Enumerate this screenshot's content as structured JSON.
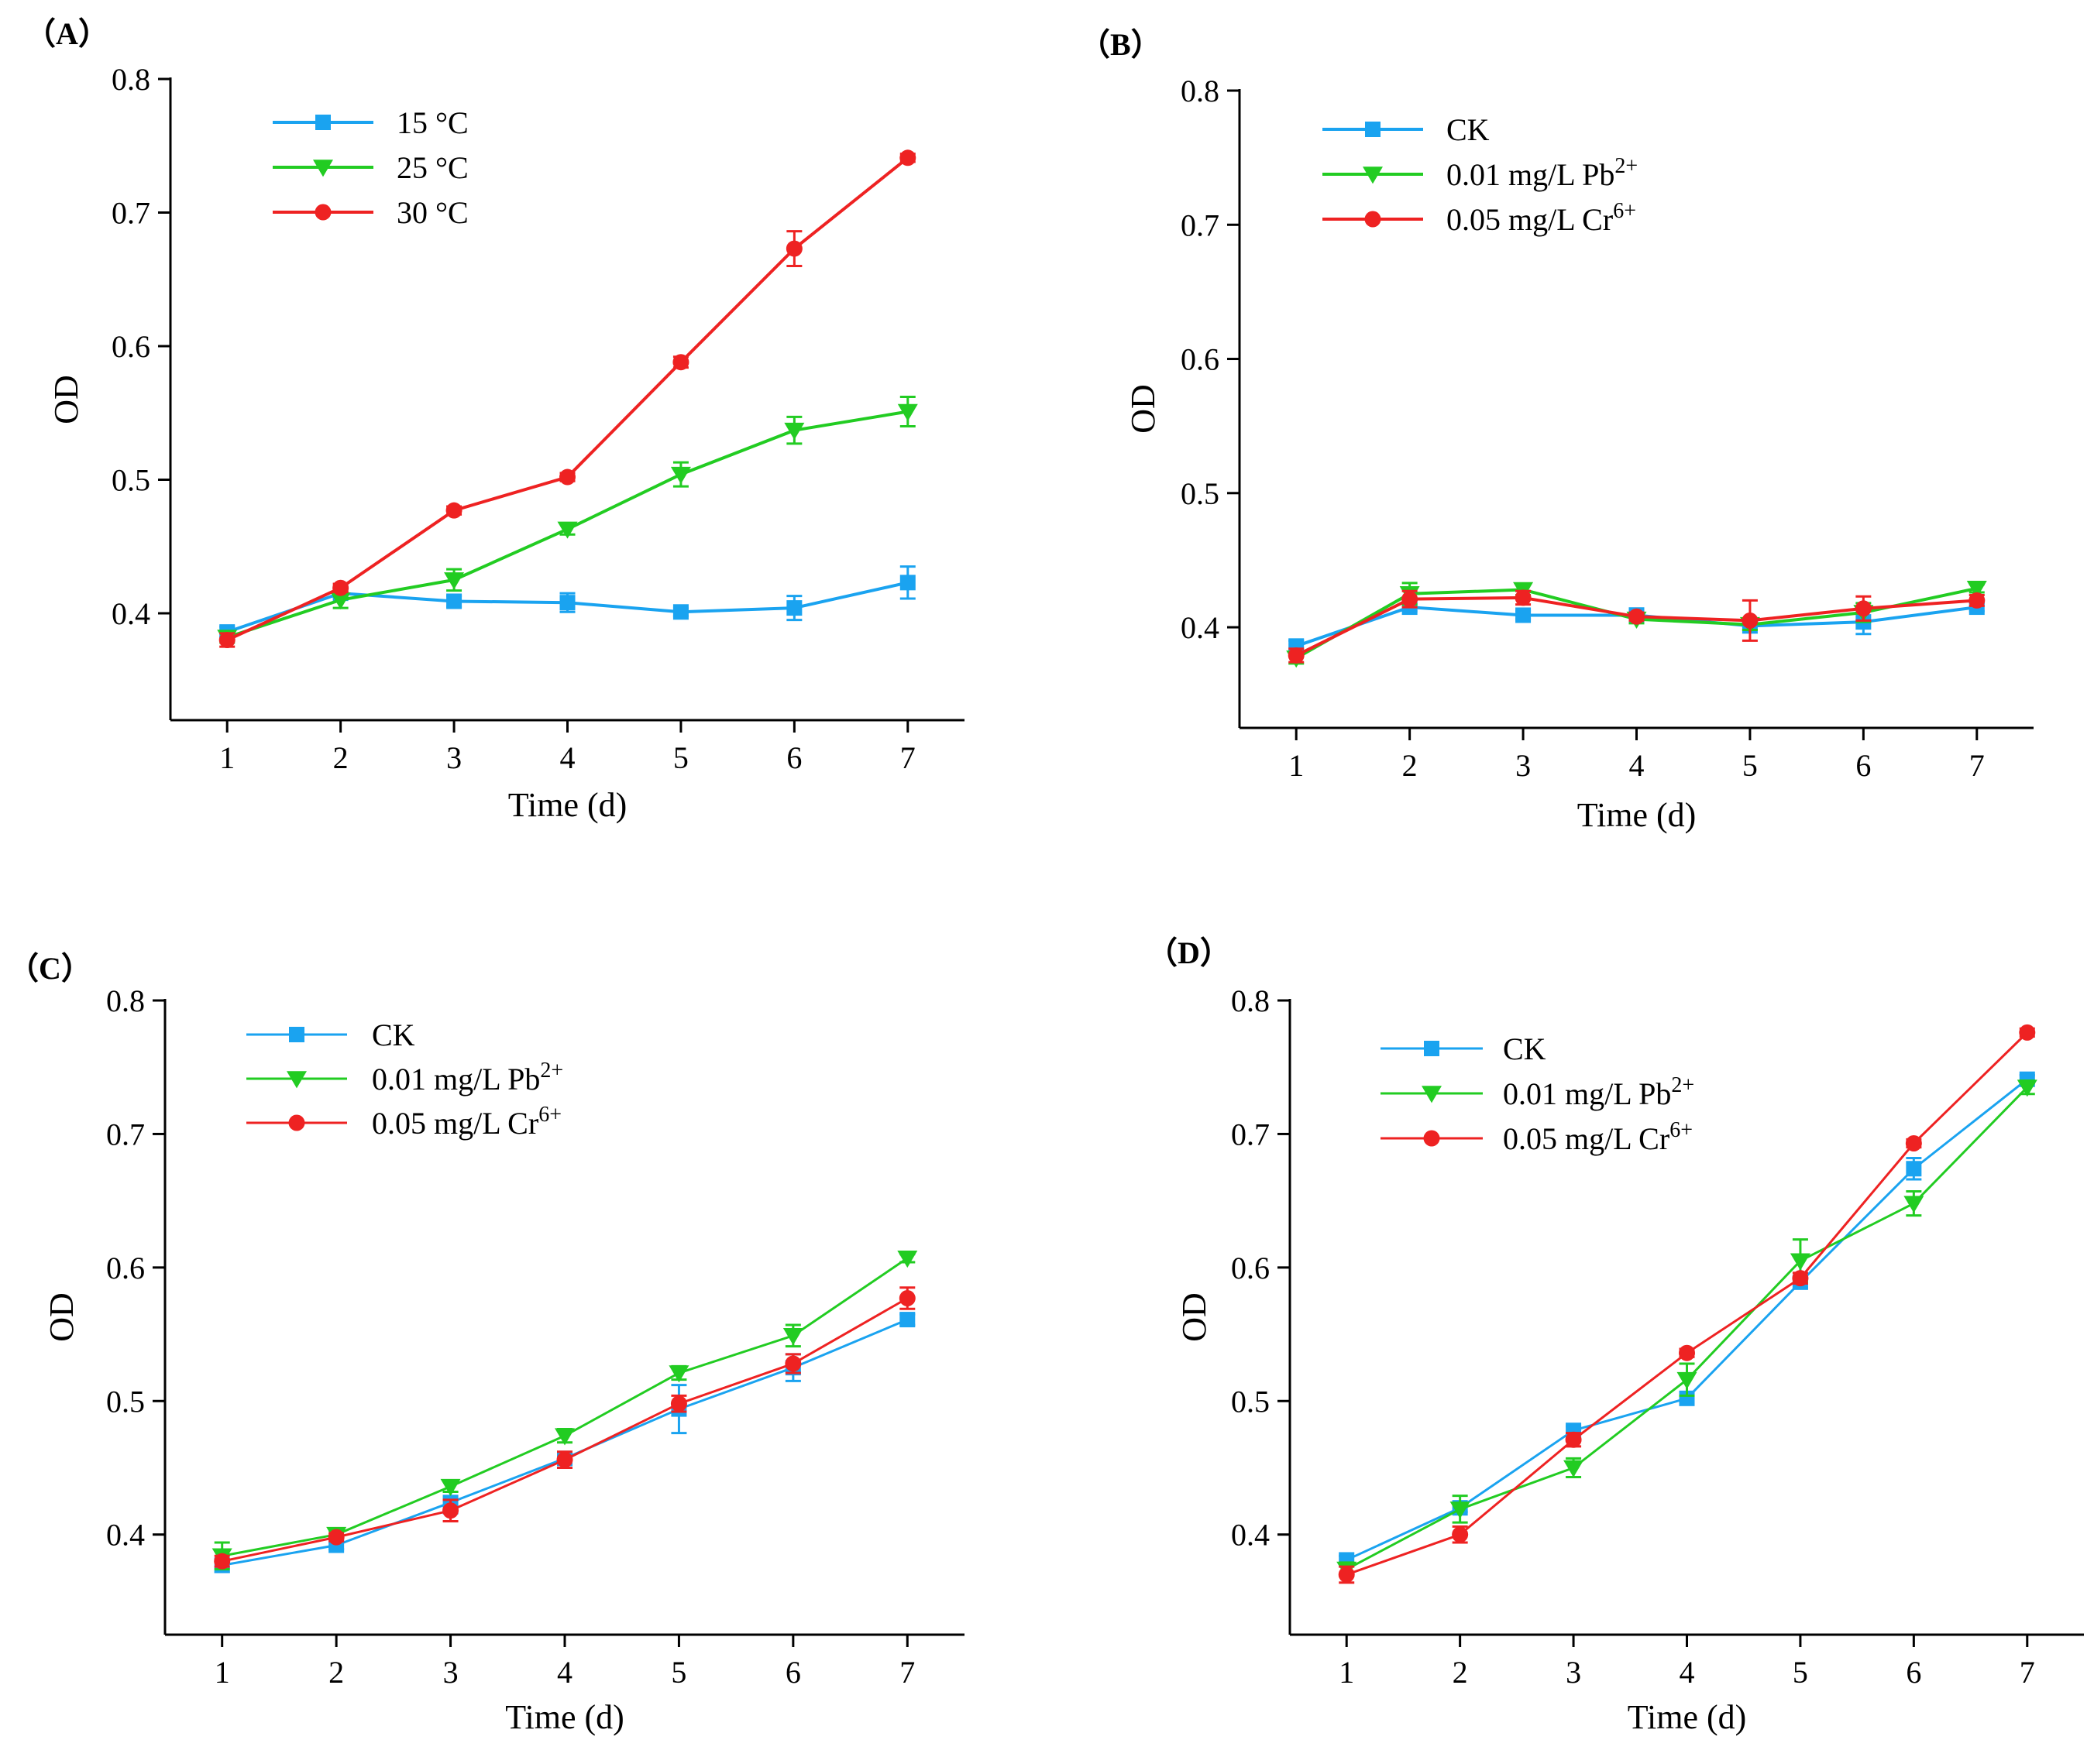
{
  "chart_data": [
    {
      "type": "line",
      "panel_label": "（A）",
      "title": "",
      "xlabel": "Time (d)",
      "ylabel": "OD",
      "x": [
        1,
        2,
        3,
        4,
        5,
        6,
        7
      ],
      "x_tick_labels": [
        "1",
        "2",
        "3",
        "4",
        "5",
        "6",
        "7"
      ],
      "y_ticks": [
        0.4,
        0.5,
        0.6,
        0.7,
        0.8
      ],
      "y_tick_labels": [
        "0.4",
        "0.5",
        "0.6",
        "0.7",
        "0.8"
      ],
      "xlim": [
        0.5,
        7.5
      ],
      "ylim": [
        0.32,
        0.8
      ],
      "legend_position": "top-left",
      "series": [
        {
          "name": "15 °C",
          "name_main": "15 °C",
          "name_sup": "",
          "color": "#1aa3f0",
          "marker": "square",
          "values": [
            0.386,
            0.415,
            0.409,
            0.408,
            0.401,
            0.404,
            0.423
          ],
          "errors": [
            0.004,
            0.003,
            0.004,
            0.007,
            0.003,
            0.009,
            0.012
          ]
        },
        {
          "name": "25 °C",
          "name_main": "25 °C",
          "name_sup": "",
          "color": "#22cc22",
          "marker": "triangle-down",
          "values": [
            0.382,
            0.41,
            0.425,
            0.463,
            0.504,
            0.537,
            0.551
          ],
          "errors": [
            0.004,
            0.006,
            0.008,
            0.004,
            0.009,
            0.01,
            0.011
          ]
        },
        {
          "name": "30 °C",
          "name_main": "30 °C",
          "name_sup": "",
          "color": "#ee2222",
          "marker": "circle",
          "values": [
            0.38,
            0.419,
            0.477,
            0.502,
            0.588,
            0.673,
            0.741
          ],
          "errors": [
            0.005,
            0.003,
            0.003,
            0.003,
            0.004,
            0.013,
            0.003
          ]
        }
      ]
    },
    {
      "type": "line",
      "panel_label": "（B）",
      "title": "",
      "xlabel": "Time (d)",
      "ylabel": "OD",
      "x": [
        1,
        2,
        3,
        4,
        5,
        6,
        7
      ],
      "x_tick_labels": [
        "1",
        "2",
        "3",
        "4",
        "5",
        "6",
        "7"
      ],
      "y_ticks": [
        0.4,
        0.5,
        0.6,
        0.7,
        0.8
      ],
      "y_tick_labels": [
        "0.4",
        "0.5",
        "0.6",
        "0.7",
        "0.8"
      ],
      "xlim": [
        0.5,
        7.5
      ],
      "ylim": [
        0.325,
        0.8
      ],
      "legend_position": "top-left",
      "series": [
        {
          "name": "CK",
          "name_main": "CK",
          "name_sup": "",
          "color": "#1aa3f0",
          "marker": "square",
          "values": [
            0.386,
            0.415,
            0.409,
            0.409,
            0.401,
            0.404,
            0.415
          ],
          "errors": [
            0.004,
            0.003,
            0.003,
            0.005,
            0.003,
            0.009,
            0.003
          ]
        },
        {
          "name": "0.01 mg/L Pb2+",
          "name_main": "0.01 mg/L Pb",
          "name_sup": "2+",
          "color": "#22cc22",
          "marker": "triangle-down",
          "values": [
            0.377,
            0.425,
            0.428,
            0.406,
            0.402,
            0.411,
            0.429
          ],
          "errors": [
            0.004,
            0.008,
            0.004,
            0.003,
            0.004,
            0.007,
            0.003
          ]
        },
        {
          "name": "0.05 mg/L Cr6+",
          "name_main": "0.05 mg/L Cr",
          "name_sup": "6+",
          "color": "#ee2222",
          "marker": "circle",
          "values": [
            0.379,
            0.421,
            0.422,
            0.408,
            0.405,
            0.414,
            0.42
          ],
          "errors": [
            0.005,
            0.006,
            0.005,
            0.003,
            0.015,
            0.009,
            0.004
          ]
        }
      ]
    },
    {
      "type": "line",
      "panel_label": "（C）",
      "title": "",
      "xlabel": "Time (d)",
      "ylabel": "OD",
      "x": [
        1,
        2,
        3,
        4,
        5,
        6,
        7
      ],
      "x_tick_labels": [
        "1",
        "2",
        "3",
        "4",
        "5",
        "6",
        "7"
      ],
      "y_ticks": [
        0.4,
        0.5,
        0.6,
        0.7,
        0.8
      ],
      "y_tick_labels": [
        "0.4",
        "0.5",
        "0.6",
        "0.7",
        "0.8"
      ],
      "xlim": [
        0.5,
        7.5
      ],
      "ylim": [
        0.325,
        0.8
      ],
      "legend_position": "top-left",
      "series": [
        {
          "name": "CK",
          "name_main": "CK",
          "name_sup": "",
          "color": "#1aa3f0",
          "marker": "square",
          "values": [
            0.377,
            0.392,
            0.424,
            0.457,
            0.494,
            0.525,
            0.561
          ],
          "errors": [
            0.005,
            0.003,
            0.008,
            0.004,
            0.018,
            0.01,
            0.004
          ]
        },
        {
          "name": "0.01 mg/L Pb2+",
          "name_main": "0.01 mg/L Pb",
          "name_sup": "2+",
          "color": "#22cc22",
          "marker": "triangle-down",
          "values": [
            0.384,
            0.4,
            0.436,
            0.474,
            0.521,
            0.549,
            0.607
          ],
          "errors": [
            0.01,
            0.003,
            0.004,
            0.005,
            0.005,
            0.008,
            0.003
          ]
        },
        {
          "name": "0.05 mg/L Cr6+",
          "name_main": "0.05 mg/L Cr",
          "name_sup": "6+",
          "color": "#ee2222",
          "marker": "circle",
          "values": [
            0.38,
            0.398,
            0.418,
            0.456,
            0.498,
            0.528,
            0.577
          ],
          "errors": [
            0.004,
            0.003,
            0.008,
            0.006,
            0.006,
            0.007,
            0.008
          ]
        }
      ]
    },
    {
      "type": "line",
      "panel_label": "（D）",
      "title": "",
      "xlabel": "Time (d)",
      "ylabel": "OD",
      "x": [
        1,
        2,
        3,
        4,
        5,
        6,
        7
      ],
      "x_tick_labels": [
        "1",
        "2",
        "3",
        "4",
        "5",
        "6",
        "7"
      ],
      "y_ticks": [
        0.4,
        0.5,
        0.6,
        0.7,
        0.8
      ],
      "y_tick_labels": [
        "0.4",
        "0.5",
        "0.6",
        "0.7",
        "0.8"
      ],
      "xlim": [
        0.5,
        7.5
      ],
      "ylim": [
        0.325,
        0.8
      ],
      "legend_position": "top-left",
      "series": [
        {
          "name": "CK",
          "name_main": "CK",
          "name_sup": "",
          "color": "#1aa3f0",
          "marker": "square",
          "values": [
            0.381,
            0.42,
            0.478,
            0.502,
            0.589,
            0.674,
            0.741
          ],
          "errors": [
            0.003,
            0.003,
            0.003,
            0.003,
            0.004,
            0.008,
            0.003
          ]
        },
        {
          "name": "0.01 mg/L Pb2+",
          "name_main": "0.01 mg/L Pb",
          "name_sup": "2+",
          "color": "#22cc22",
          "marker": "triangle-down",
          "values": [
            0.374,
            0.419,
            0.45,
            0.516,
            0.605,
            0.648,
            0.735
          ],
          "errors": [
            0.005,
            0.01,
            0.007,
            0.012,
            0.016,
            0.009,
            0.005
          ]
        },
        {
          "name": "0.05 mg/L Cr6+",
          "name_main": "0.05 mg/L Cr",
          "name_sup": "6+",
          "color": "#ee2222",
          "marker": "circle",
          "values": [
            0.37,
            0.4,
            0.471,
            0.536,
            0.592,
            0.693,
            0.776
          ],
          "errors": [
            0.006,
            0.006,
            0.005,
            0.003,
            0.004,
            0.003,
            0.003
          ]
        }
      ]
    }
  ]
}
